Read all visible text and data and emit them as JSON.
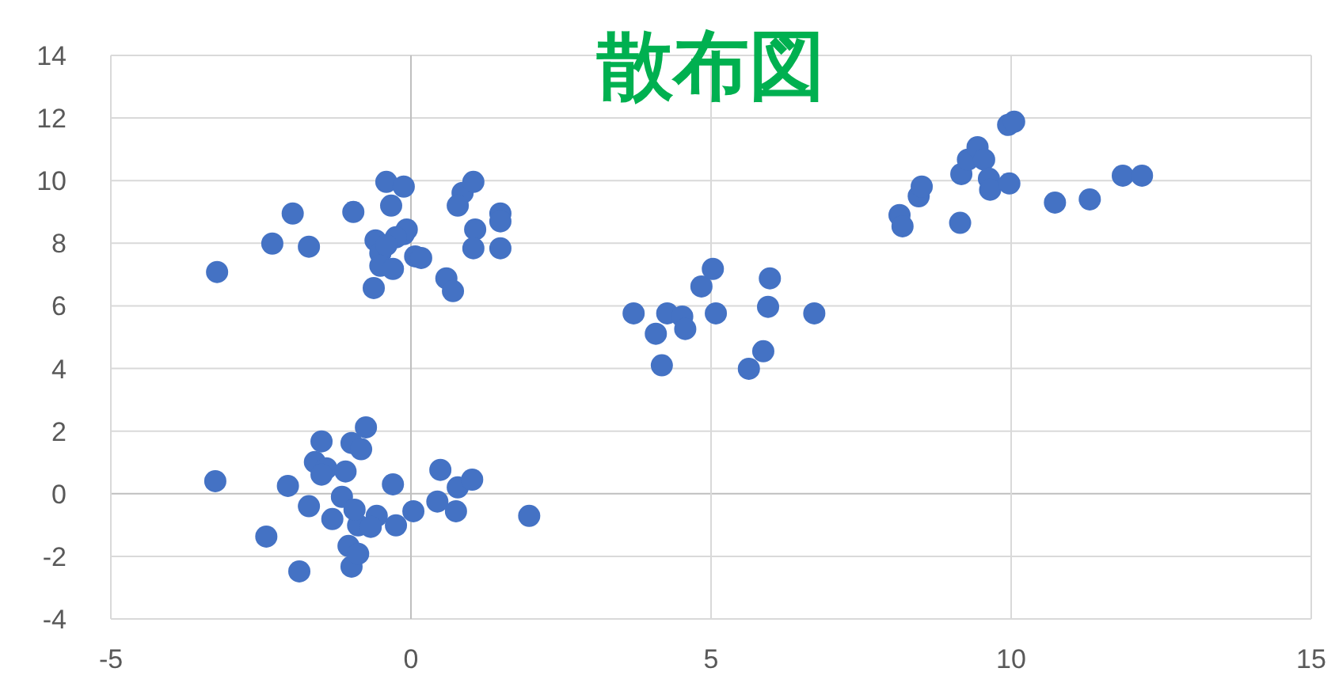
{
  "chart_data": {
    "type": "scatter",
    "title": "散布図",
    "xlim": [
      -5,
      15
    ],
    "ylim": [
      -4,
      14
    ],
    "xticks": [
      -5,
      0,
      5,
      10,
      15
    ],
    "yticks": [
      -4,
      -2,
      0,
      2,
      4,
      6,
      8,
      10,
      12,
      14
    ],
    "grid": true,
    "marker": "circle",
    "series": [
      {
        "color": "#4472c4",
        "x": [
          -3.23,
          -2.31,
          -1.97,
          -1.7,
          -0.96,
          -0.41,
          -0.12,
          -0.33,
          -0.59,
          -0.51,
          -0.62,
          -0.51,
          -0.3,
          -0.12,
          -0.07,
          0.07,
          0.17,
          0.59,
          0.7,
          0.86,
          0.78,
          1.04,
          1.07,
          1.04,
          1.49,
          1.49,
          1.49,
          -0.25,
          -0.41,
          -3.26,
          -2.41,
          -2.05,
          -1.86,
          -1.7,
          -1.6,
          -1.49,
          -1.41,
          -1.49,
          -1.31,
          -1.15,
          -1.09,
          -1.04,
          -0.99,
          -0.88,
          -0.94,
          -0.99,
          -0.83,
          -0.75,
          -0.88,
          -0.57,
          -0.67,
          -0.3,
          -0.25,
          0.04,
          0.44,
          0.49,
          0.78,
          0.75,
          1.02,
          1.97,
          3.71,
          4.08,
          4.27,
          4.18,
          4.52,
          4.57,
          4.84,
          5.03,
          5.08,
          5.98,
          5.95,
          5.87,
          5.63,
          6.72,
          8.14,
          8.19,
          8.46,
          8.51,
          9.15,
          9.17,
          9.28,
          9.44,
          9.55,
          9.63,
          9.65,
          9.97,
          9.95,
          10.05,
          10.73,
          11.31,
          11.86,
          12.18
        ],
        "values": [
          7.08,
          7.99,
          8.95,
          7.89,
          9.0,
          9.96,
          9.81,
          9.2,
          8.09,
          7.68,
          6.57,
          7.28,
          7.18,
          8.29,
          8.44,
          7.58,
          7.53,
          6.88,
          6.47,
          9.61,
          9.2,
          9.96,
          8.44,
          7.84,
          8.95,
          8.7,
          7.84,
          8.19,
          7.94,
          0.4,
          -1.37,
          0.25,
          -2.48,
          -0.4,
          1.01,
          1.67,
          0.81,
          0.61,
          -0.81,
          -0.1,
          0.71,
          -1.67,
          -2.33,
          -1.01,
          -0.51,
          1.62,
          1.42,
          2.12,
          -1.92,
          -0.71,
          -1.06,
          0.3,
          -1.01,
          -0.56,
          -0.25,
          0.76,
          0.2,
          -0.56,
          0.45,
          -0.71,
          5.76,
          5.11,
          5.76,
          4.1,
          5.66,
          5.26,
          6.62,
          7.18,
          5.76,
          6.88,
          5.97,
          4.55,
          3.99,
          5.76,
          8.9,
          8.54,
          9.5,
          9.81,
          8.65,
          10.21,
          10.67,
          11.07,
          10.67,
          10.06,
          9.71,
          9.91,
          11.78,
          11.88,
          9.3,
          9.4,
          10.16,
          10.16
        ]
      }
    ]
  }
}
